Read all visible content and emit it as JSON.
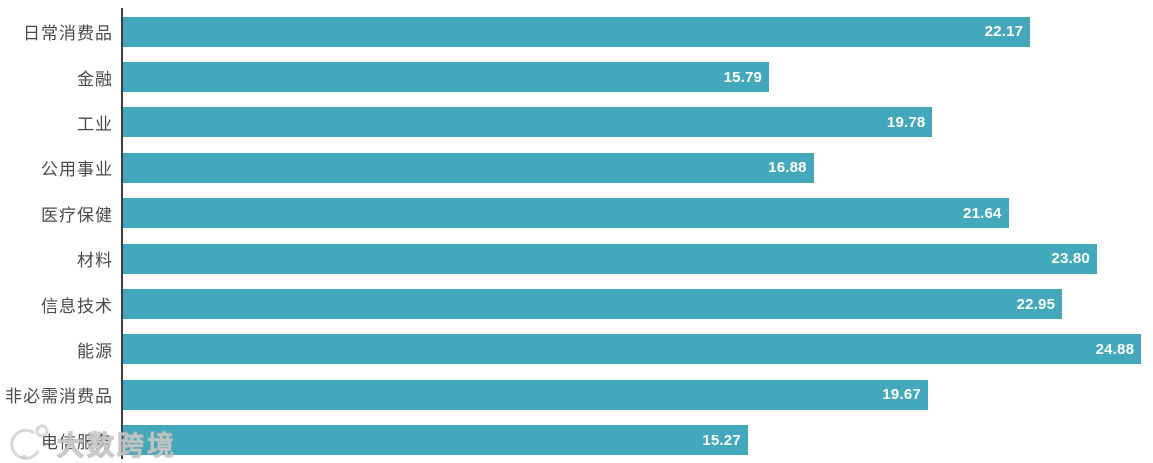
{
  "chart_data": {
    "type": "bar",
    "orientation": "horizontal",
    "title": "",
    "xlabel": "",
    "ylabel": "",
    "categories": [
      "日常消费品",
      "金融",
      "工业",
      "公用事业",
      "医疗保健",
      "材料",
      "信息技术",
      "能源",
      "非必需消费品",
      "电信服务"
    ],
    "values": [
      22.17,
      15.79,
      19.78,
      16.88,
      21.64,
      23.8,
      22.95,
      24.88,
      19.67,
      15.27
    ],
    "value_labels": [
      "22.17",
      "15.79",
      "19.78",
      "16.88",
      "21.64",
      "23.80",
      "22.95",
      "24.88",
      "19.67",
      "15.27"
    ],
    "xlim": [
      0,
      25.17
    ],
    "grid": false,
    "legend": false,
    "bar_color": "#44a8bc",
    "value_label_color": "#ffffff",
    "category_label_color": "#4a4a4a",
    "axis_line_color": "#3f3f3f"
  },
  "watermark": {
    "text": "大数跨境"
  }
}
